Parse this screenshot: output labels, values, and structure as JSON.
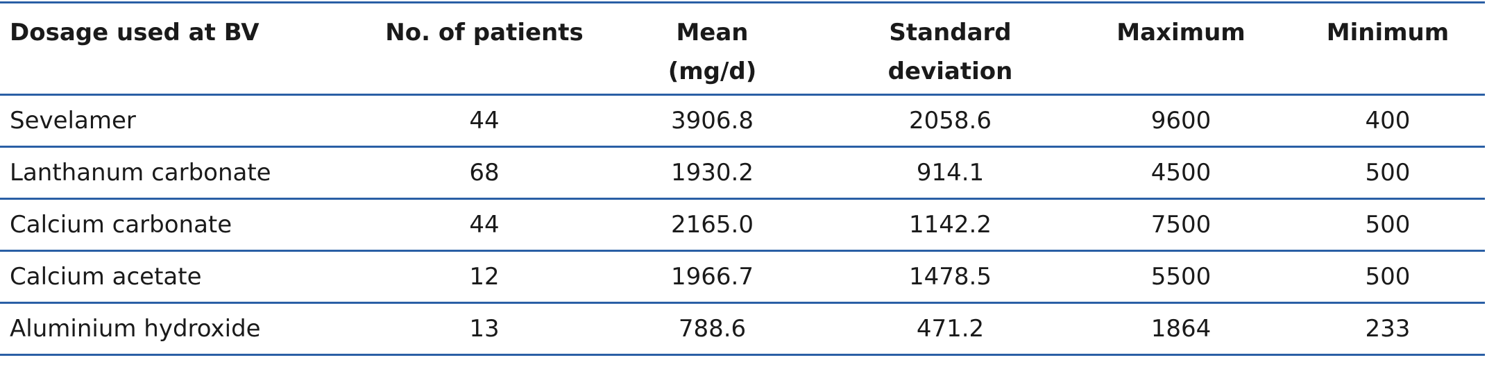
{
  "table": {
    "headers": [
      "Dosage used at BV",
      "No. of patients",
      "Mean (mg/d)",
      "Standard deviation",
      "Maximum",
      "Minimum"
    ],
    "rows": [
      [
        "Sevelamer",
        "44",
        "3906.8",
        "2058.6",
        "9600",
        "400"
      ],
      [
        "Lanthanum carbonate",
        "68",
        "1930.2",
        "914.1",
        "4500",
        "500"
      ],
      [
        "Calcium carbonate",
        "44",
        "2165.0",
        "1142.2",
        "7500",
        "500"
      ],
      [
        "Calcium acetate",
        "12",
        "1966.7",
        "1478.5",
        "5500",
        "500"
      ],
      [
        "Aluminium hydroxide",
        "13",
        "788.6",
        "471.2",
        "1864",
        "233"
      ]
    ]
  }
}
